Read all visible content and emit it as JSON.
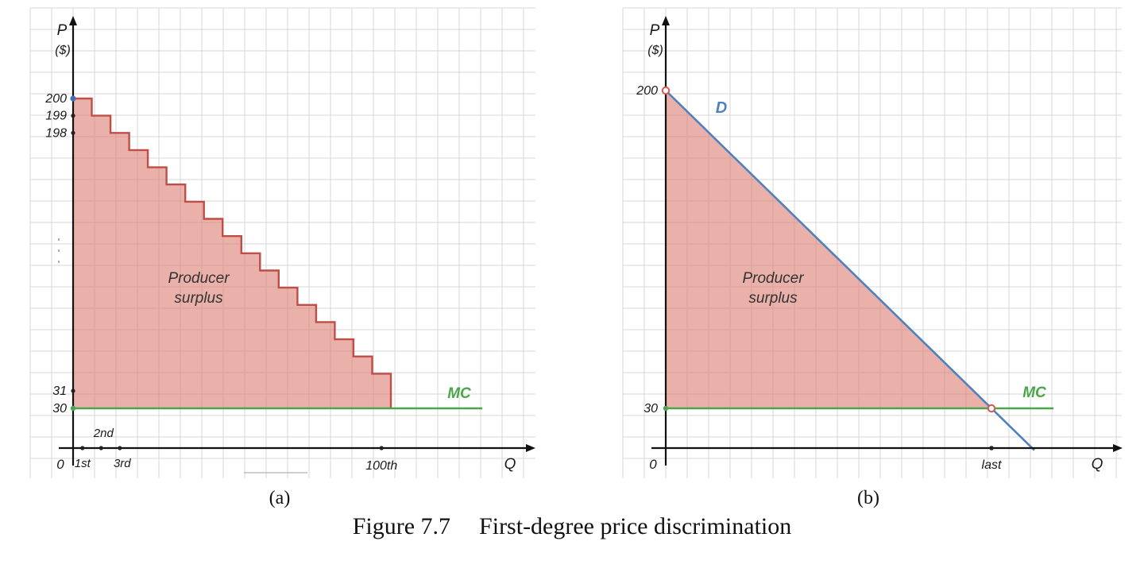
{
  "figure": {
    "caption_number": "Figure 7.7",
    "caption_title": "First-degree price discrimination",
    "panel_a_label": "(a)",
    "panel_b_label": "(b)"
  },
  "colors": {
    "surplus_fill": "#dd7f76",
    "stair_stroke": "#bf4e47",
    "demand_blue": "#4f81bd",
    "mc_green": "#4ba64b",
    "grid": "#d7d7d7",
    "axis": "#111111",
    "text": "#1a1a1a",
    "open_point_stroke": "#d4574e",
    "start_dot_blue": "#3e6fbd"
  },
  "chart_data": [
    {
      "panel": "(a)",
      "type": "area",
      "subtype": "staircase-demand",
      "grid": true,
      "ylabel": "P",
      "ylabel_units": "($)",
      "xlabel": "Q",
      "origin": "0",
      "ylim": [
        0,
        200
      ],
      "y_tick_labels_top": [
        "200",
        "199",
        "198"
      ],
      "y_tick_labels_bottom": [
        "31",
        "30"
      ],
      "x_ticks": {
        "below": [
          "1st",
          "3rd"
        ],
        "above": "2nd",
        "far": "100th"
      },
      "mc": {
        "label": "MC",
        "value": 30
      },
      "demand_steps": {
        "first_unit_price": 200,
        "second_unit_price": 199,
        "third_unit_price": 198,
        "hundredth_unit_price": 31,
        "steps_drawn": 17
      },
      "area_label": [
        "Producer",
        "surplus"
      ]
    },
    {
      "panel": "(b)",
      "type": "area",
      "subtype": "linear-demand",
      "grid": true,
      "ylabel": "P",
      "ylabel_units": "($)",
      "xlabel": "Q",
      "origin": "0",
      "ylim": [
        0,
        200
      ],
      "demand_label": "D",
      "y_tick_labels": [
        "200",
        "30"
      ],
      "x_tick_labels": [
        "last"
      ],
      "mc": {
        "label": "MC",
        "value": 30
      },
      "demand": {
        "price_intercept": 200,
        "intersects_mc_at_label": "last"
      },
      "area_label": [
        "Producer",
        "surplus"
      ]
    }
  ]
}
